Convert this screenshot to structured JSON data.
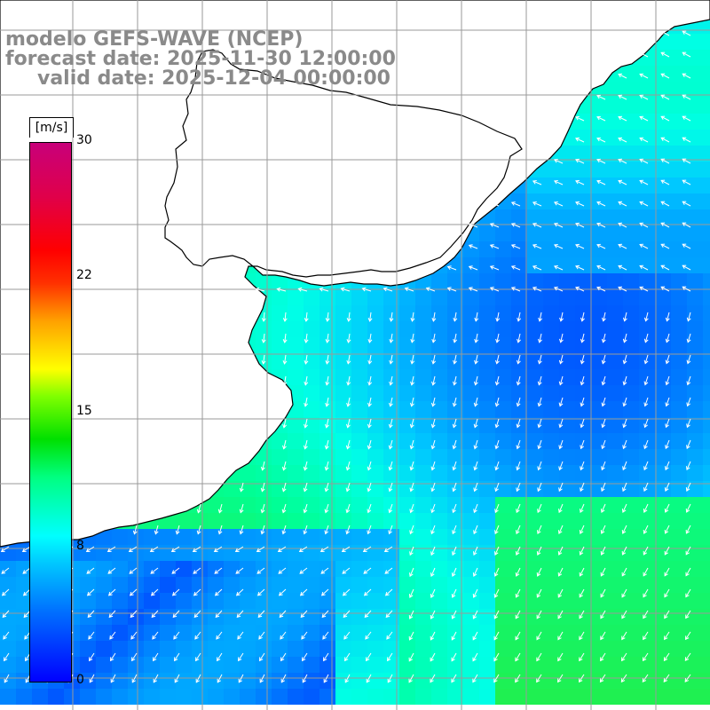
{
  "title": {
    "model": "modelo GEFS-WAVE (NCEP)",
    "forecast": "forecast date: 2025-11-30 12:00:00",
    "valid": "valid date: 2025-12-04 00:00:00"
  },
  "colorbar": {
    "unit": "[m/s]",
    "ticks": [
      "30",
      "22",
      "15",
      "8",
      "0"
    ],
    "min": 0,
    "max": 30,
    "colors": [
      "#0000ff",
      "#00c8ff",
      "#00ff80",
      "#00e000",
      "#ffff00",
      "#ff0000",
      "#c8007a"
    ]
  },
  "map": {
    "variable": "wind speed and direction",
    "land_color": "#ffffff",
    "coastline_color": "#000000",
    "grid_color": "#9a9a9a",
    "arrow_color": "#ffffff",
    "grid_on": true
  }
}
